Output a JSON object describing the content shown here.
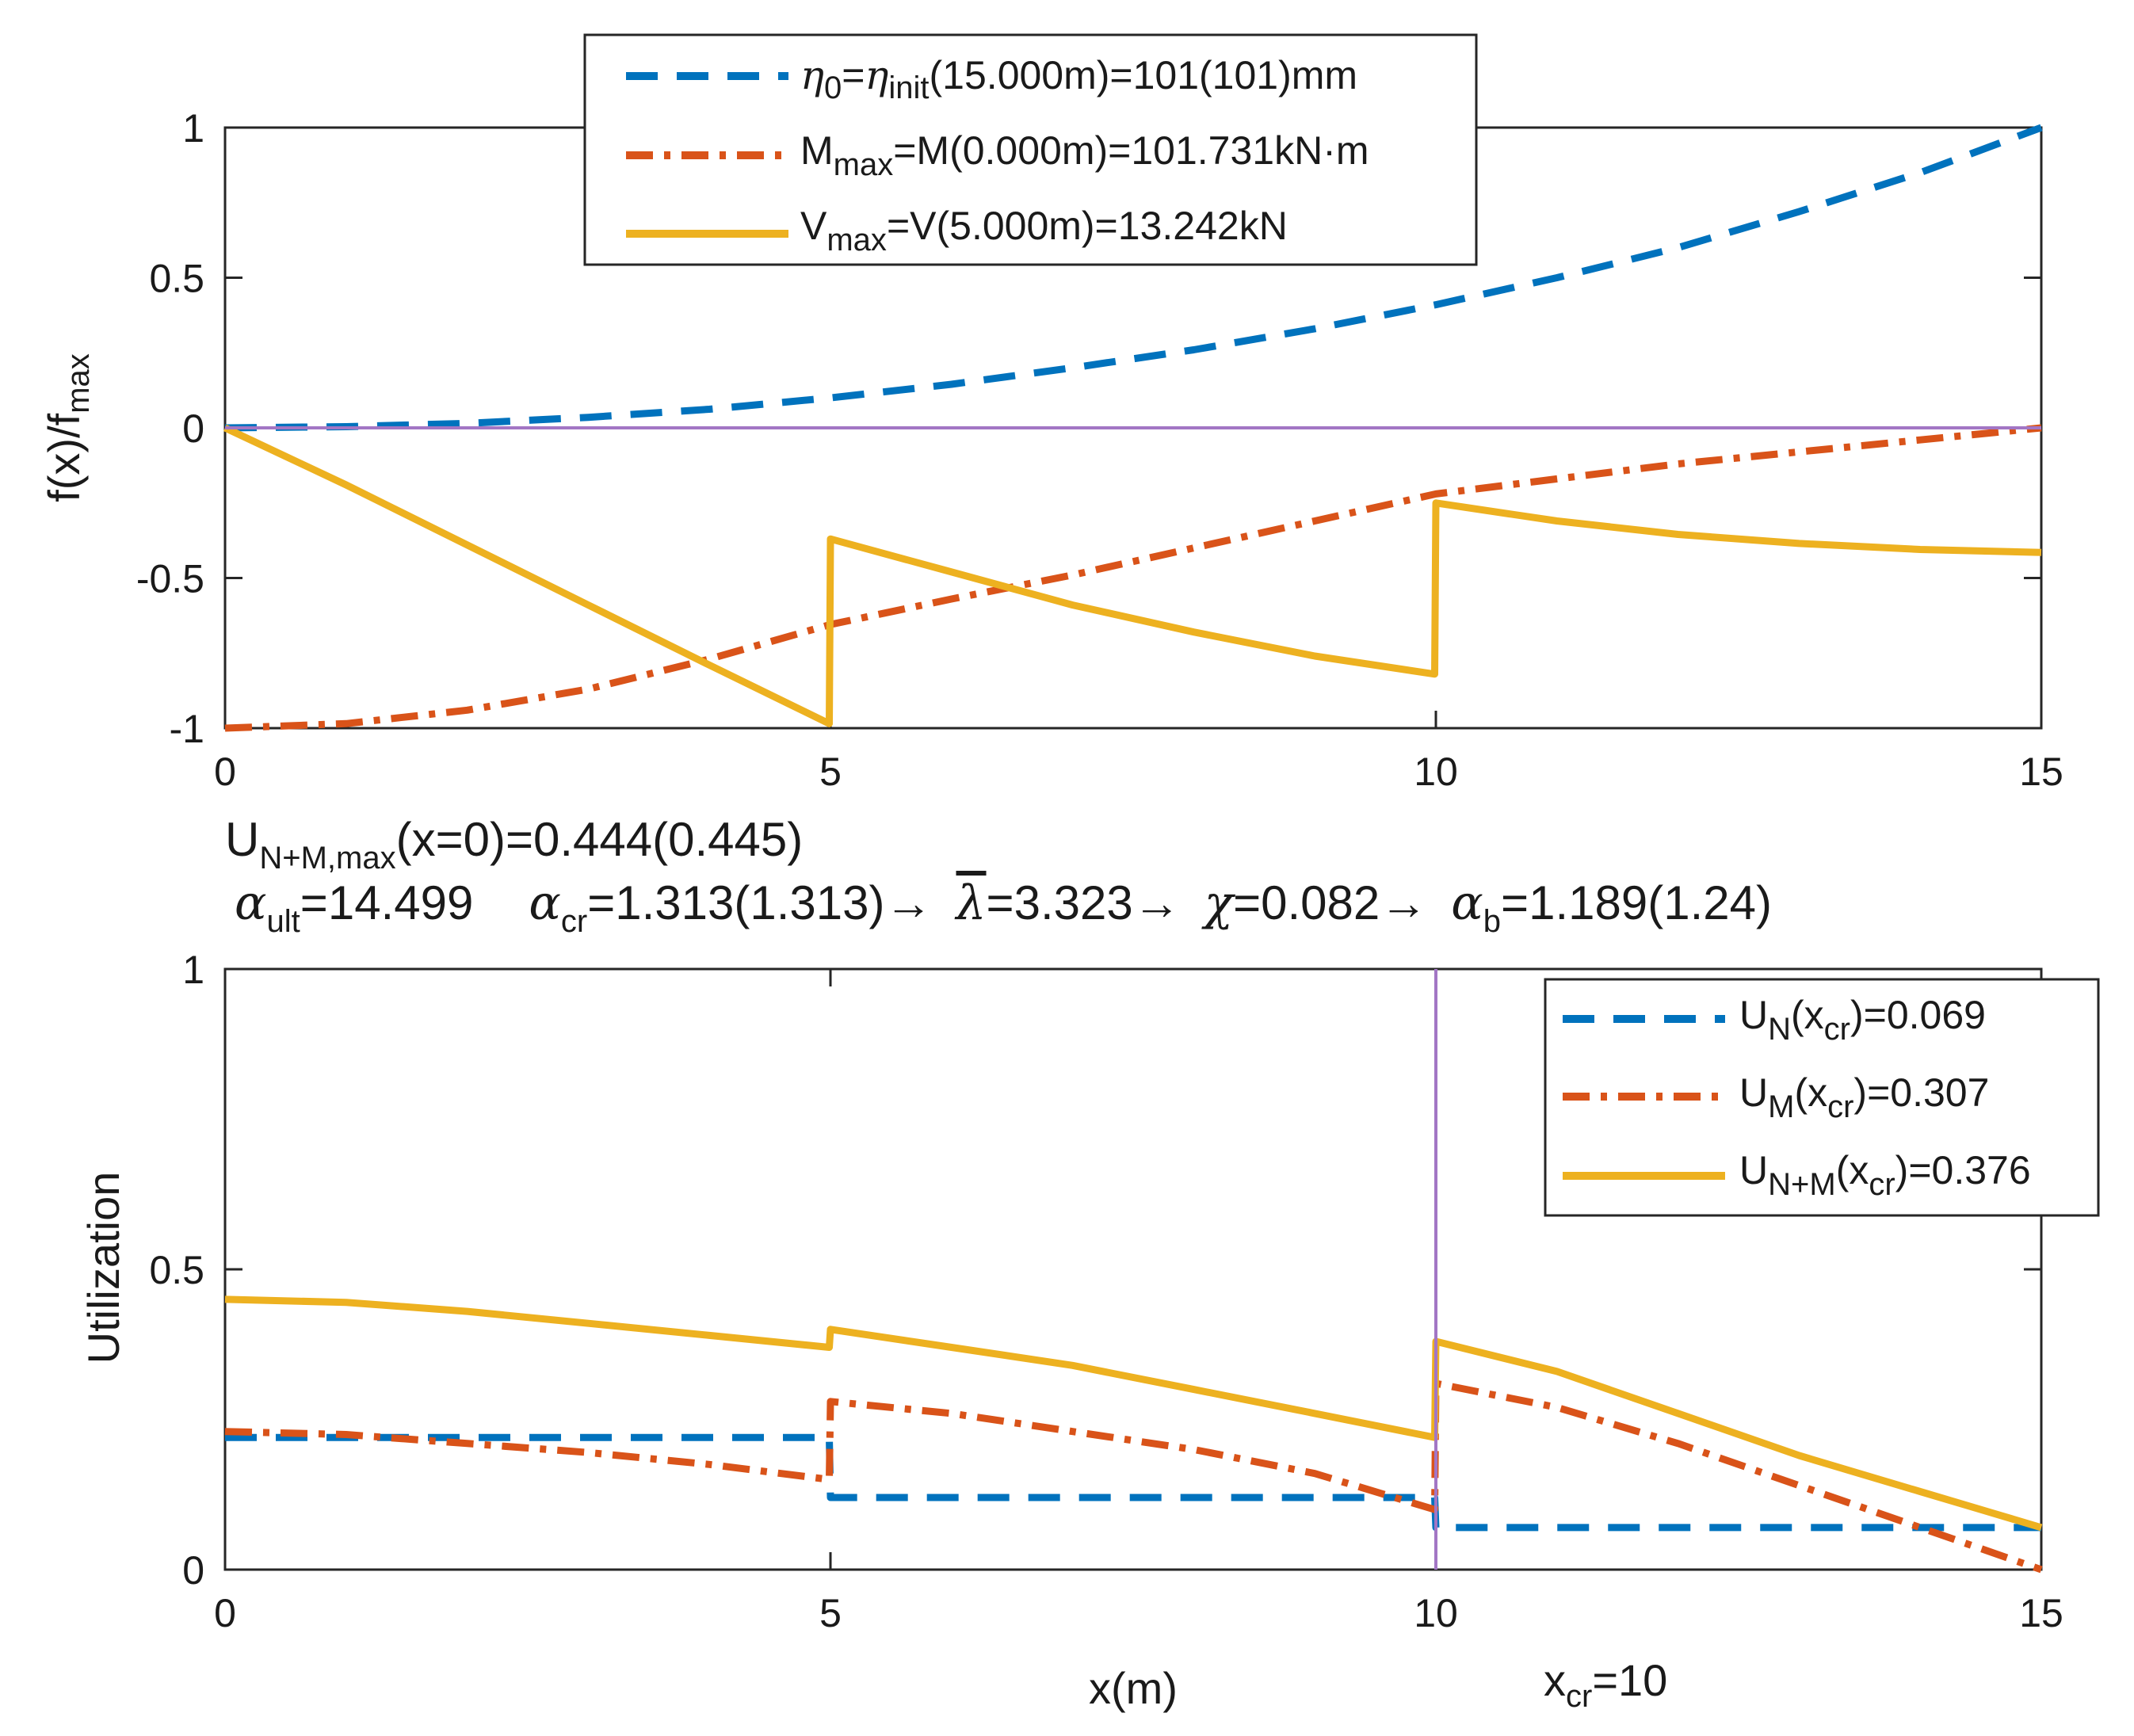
{
  "colors": {
    "blue": "#0072BD",
    "orange": "#D95319",
    "yellow": "#EDB120",
    "purple": "#A276C4",
    "axis": "#262626"
  },
  "chart_data": [
    {
      "type": "line",
      "xlabel": "",
      "ylabel": "f(x)/f",
      "ylabel_sub": "max",
      "xlim": [
        0,
        15
      ],
      "ylim": [
        -1,
        1
      ],
      "xticks": [
        "0",
        "5",
        "10",
        "15"
      ],
      "yticks": [
        "-1",
        "-0.5",
        "0",
        "0.5",
        "1"
      ],
      "legend_position": "top-left",
      "legend": [
        {
          "pre": "",
          "greek": "η",
          "sub": "0",
          "mid": "=",
          "greek2": "η",
          "sub2": "init",
          "text": "(15.000m)=101(101)mm"
        },
        {
          "pre": "M",
          "sub": "max",
          "text": "=M(0.000m)=101.731kN·m"
        },
        {
          "pre": "V",
          "sub": "max",
          "text": "=V(5.000m)=13.242kN"
        }
      ],
      "series": [
        {
          "name": "eta",
          "style": "dashed",
          "color": "blue",
          "x": [
            0,
            1,
            2,
            3,
            4,
            5,
            6,
            7,
            8,
            9,
            10,
            11,
            12,
            13,
            14,
            15
          ],
          "y": [
            0,
            0.004,
            0.015,
            0.035,
            0.062,
            0.1,
            0.145,
            0.2,
            0.26,
            0.33,
            0.41,
            0.5,
            0.6,
            0.72,
            0.85,
            1.0
          ]
        },
        {
          "name": "M",
          "style": "dashdot",
          "color": "orange",
          "x": [
            0,
            1,
            2,
            3,
            4,
            5,
            6,
            7,
            8,
            9,
            10,
            11,
            12,
            13,
            14,
            15
          ],
          "y": [
            -1.0,
            -0.985,
            -0.94,
            -0.87,
            -0.77,
            -0.655,
            -0.57,
            -0.49,
            -0.4,
            -0.31,
            -0.22,
            -0.17,
            -0.12,
            -0.08,
            -0.04,
            0.0
          ]
        },
        {
          "name": "V",
          "style": "solid",
          "color": "yellow",
          "x": [
            0,
            1,
            2,
            3,
            4,
            4.99,
            5.0,
            6,
            7,
            8,
            9,
            9.99,
            10.0,
            11,
            12,
            13,
            14,
            15
          ],
          "y": [
            0,
            -0.19,
            -0.39,
            -0.59,
            -0.79,
            -0.985,
            -0.37,
            -0.48,
            -0.59,
            -0.68,
            -0.76,
            -0.82,
            -0.25,
            -0.31,
            -0.355,
            -0.385,
            -0.405,
            -0.415
          ]
        },
        {
          "name": "zero",
          "style": "solid",
          "color": "purple",
          "x": [
            0,
            15
          ],
          "y": [
            0,
            0
          ]
        }
      ]
    },
    {
      "type": "line",
      "xlabel": "x(m)",
      "ylabel": "Utilization",
      "xlim": [
        0,
        15
      ],
      "ylim": [
        0,
        1
      ],
      "xticks": [
        "0",
        "5",
        "10",
        "15"
      ],
      "yticks": [
        "0",
        "0.5",
        "1"
      ],
      "legend_position": "top-right",
      "legend": [
        {
          "pre": "U",
          "sub": "N",
          "mid": "(x",
          "sub2": "cr",
          "text": ")=0.069"
        },
        {
          "pre": "U",
          "sub": "M",
          "mid": "(x",
          "sub2": "cr",
          "text": ")=0.307"
        },
        {
          "pre": "U",
          "sub": "N+M",
          "mid": "(x",
          "sub2": "cr",
          "text": ")=0.376"
        }
      ],
      "series": [
        {
          "name": "UN",
          "style": "dashed",
          "color": "blue",
          "x": [
            0,
            4.99,
            5.0,
            9.99,
            10.0,
            15
          ],
          "y": [
            0.22,
            0.22,
            0.12,
            0.12,
            0.07,
            0.07
          ]
        },
        {
          "name": "UM",
          "style": "dashdot",
          "color": "orange",
          "x": [
            0,
            1,
            2,
            3,
            4,
            4.99,
            5.0,
            6,
            7,
            8,
            9,
            9.99,
            10.0,
            11,
            12,
            13,
            14,
            15
          ],
          "y": [
            0.23,
            0.225,
            0.21,
            0.195,
            0.175,
            0.15,
            0.28,
            0.26,
            0.23,
            0.2,
            0.16,
            0.1,
            0.31,
            0.27,
            0.21,
            0.14,
            0.07,
            0.0
          ]
        },
        {
          "name": "UNM",
          "style": "solid",
          "color": "yellow",
          "x": [
            0,
            1,
            2,
            3,
            4,
            4.99,
            5.0,
            6,
            7,
            8,
            9,
            9.99,
            10.0,
            11,
            12,
            13,
            14,
            15
          ],
          "y": [
            0.45,
            0.445,
            0.43,
            0.41,
            0.39,
            0.37,
            0.4,
            0.37,
            0.34,
            0.3,
            0.26,
            0.22,
            0.38,
            0.33,
            0.26,
            0.19,
            0.13,
            0.07
          ]
        },
        {
          "name": "xcr-marker",
          "style": "solid",
          "color": "purple",
          "x": [
            10,
            10
          ],
          "y": [
            0,
            1
          ]
        }
      ],
      "xcr_label": {
        "pre": "x",
        "sub": "cr",
        "text": "=10"
      }
    }
  ],
  "annotation": {
    "line1": {
      "pre": "U",
      "sub": "N+M,max",
      "text": "(x=0)=0.444(0.445)"
    },
    "line2": {
      "alpha1_sub": "ult",
      "alpha1_val": "=14.499",
      "alpha2_sub": "cr",
      "alpha2_val": "=1.313(1.313)→",
      "lambda": "λ",
      "lambda_val": "=3.323→",
      "chi": "χ",
      "chi_val": "=0.082→",
      "alpha3_sub": "b",
      "alpha3_val": "=1.189(1.24)"
    },
    "alpha": "α"
  }
}
